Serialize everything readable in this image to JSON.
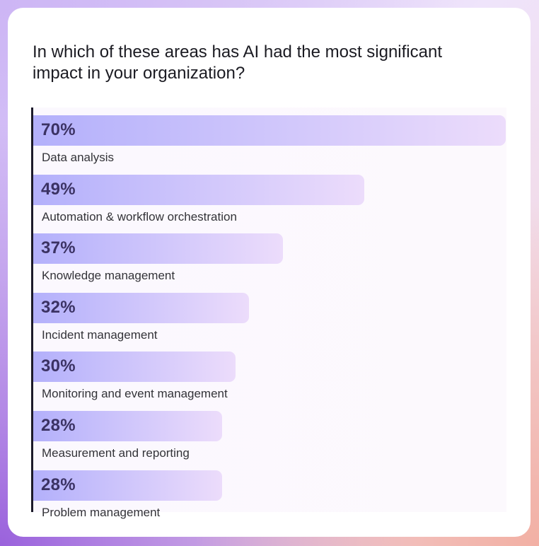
{
  "question": "In which of these areas has AI had the most significant impact in your organization?",
  "chart_data": {
    "type": "bar",
    "orientation": "horizontal",
    "categories": [
      "Data analysis",
      "Automation & workflow orchestration",
      "Knowledge management",
      "Incident management",
      "Monitoring and event management",
      "Measurement and reporting",
      "Problem management"
    ],
    "values": [
      70,
      49,
      37,
      32,
      30,
      28,
      28
    ],
    "value_labels": [
      "70%",
      "49%",
      "37%",
      "32%",
      "30%",
      "28%",
      "28%"
    ],
    "unit": "%",
    "xlim": [
      0,
      70
    ],
    "grid": false,
    "legend": "none"
  },
  "colors": {
    "bar_start": "#b3b0fb",
    "bar_end": "#ecdcfb",
    "value_text": "#3b3263",
    "axis": "#1c1a2a"
  }
}
